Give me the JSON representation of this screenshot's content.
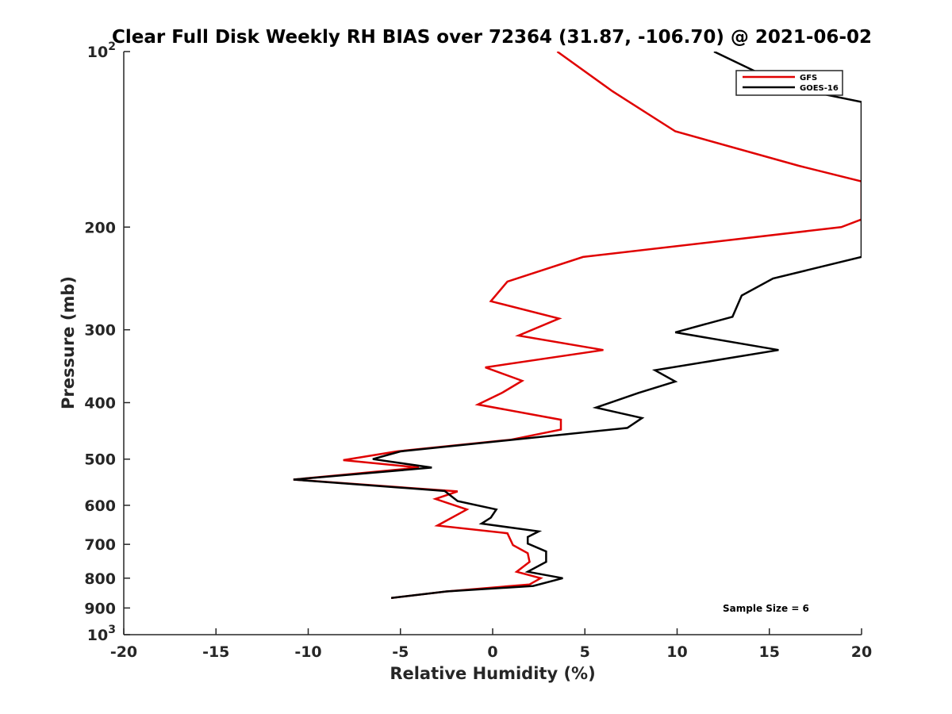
{
  "chart_data": {
    "type": "line",
    "title": "Clear Full Disk Weekly RH BIAS over 72364 (31.87, -106.70) @ 2021-06-02",
    "xlabel": "Relative Humidity (%)",
    "ylabel": "Pressure (mb)",
    "xlim": [
      -20,
      20
    ],
    "ylim": [
      100,
      1000
    ],
    "yscale": "log",
    "y_reversed": true,
    "x_ticks": [
      "-20",
      "-15",
      "-10",
      "-5",
      "0",
      "5",
      "10",
      "15",
      "20"
    ],
    "y_ticks": [
      {
        "value": 100,
        "base": "10",
        "exp": "2"
      },
      {
        "value": 200,
        "label": "200"
      },
      {
        "value": 300,
        "label": "300"
      },
      {
        "value": 400,
        "label": "400"
      },
      {
        "value": 500,
        "label": "500"
      },
      {
        "value": 600,
        "label": "600"
      },
      {
        "value": 700,
        "label": "700"
      },
      {
        "value": 800,
        "label": "800"
      },
      {
        "value": 900,
        "label": "900"
      },
      {
        "value": 1000,
        "base": "10",
        "exp": "3"
      }
    ],
    "legend_position": "top-right",
    "annotation": "Sample Size = 6",
    "series": [
      {
        "name": "GFS",
        "color": "#e00000",
        "points": [
          [
            3.5,
            100
          ],
          [
            6.5,
            117
          ],
          [
            9.9,
            137
          ],
          [
            16.6,
            157
          ],
          [
            20.0,
            167
          ],
          [
            20.0,
            194
          ],
          [
            18.9,
            200
          ],
          [
            4.9,
            225
          ],
          [
            0.8,
            248
          ],
          [
            -0.1,
            268
          ],
          [
            3.6,
            287
          ],
          [
            1.4,
            307
          ],
          [
            6.0,
            325
          ],
          [
            -0.4,
            348
          ],
          [
            1.6,
            367
          ],
          [
            0.5,
            385
          ],
          [
            -0.8,
            403
          ],
          [
            3.7,
            428
          ],
          [
            3.7,
            445
          ],
          [
            1.0,
            463
          ],
          [
            -5.2,
            485
          ],
          [
            -8.1,
            502
          ],
          [
            -4.0,
            517
          ],
          [
            -10.8,
            542
          ],
          [
            -1.9,
            568
          ],
          [
            -3.1,
            585
          ],
          [
            -1.4,
            610
          ],
          [
            -3.0,
            650
          ],
          [
            0.8,
            670
          ],
          [
            1.1,
            702
          ],
          [
            1.9,
            725
          ],
          [
            2.0,
            750
          ],
          [
            1.3,
            780
          ],
          [
            2.6,
            800
          ],
          [
            2.0,
            820
          ],
          [
            -2.5,
            843
          ],
          [
            -5.5,
            865
          ]
        ]
      },
      {
        "name": "GOES-16",
        "color": "#000000",
        "points": [
          [
            12.0,
            100
          ],
          [
            16.0,
            115
          ],
          [
            20.0,
            122
          ],
          [
            20.0,
            225
          ],
          [
            15.2,
            245
          ],
          [
            13.5,
            262
          ],
          [
            13.0,
            285
          ],
          [
            9.9,
            303
          ],
          [
            15.5,
            325
          ],
          [
            8.8,
            352
          ],
          [
            9.9,
            368
          ],
          [
            7.9,
            385
          ],
          [
            5.6,
            408
          ],
          [
            8.1,
            425
          ],
          [
            7.3,
            442
          ],
          [
            -5.0,
            485
          ],
          [
            -6.5,
            500
          ],
          [
            -3.3,
            517
          ],
          [
            -10.8,
            542
          ],
          [
            -2.6,
            567
          ],
          [
            -1.9,
            590
          ],
          [
            0.2,
            610
          ],
          [
            -0.1,
            630
          ],
          [
            -0.6,
            645
          ],
          [
            2.5,
            665
          ],
          [
            1.9,
            680
          ],
          [
            1.9,
            698
          ],
          [
            2.9,
            720
          ],
          [
            2.9,
            750
          ],
          [
            1.9,
            780
          ],
          [
            3.8,
            800
          ],
          [
            2.2,
            825
          ],
          [
            -2.5,
            843
          ],
          [
            -5.5,
            865
          ]
        ]
      }
    ]
  }
}
